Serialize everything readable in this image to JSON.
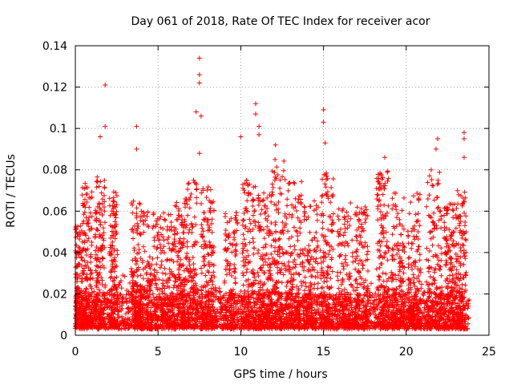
{
  "chart_data": {
    "type": "scatter",
    "title": "Day 061 of 2018, Rate Of TEC Index for receiver acor",
    "xlabel": "GPS time / hours",
    "ylabel": "ROTI / TECUs",
    "xlim": [
      0,
      25
    ],
    "ylim": [
      0,
      0.14
    ],
    "xticks": [
      0,
      5,
      10,
      15,
      20,
      25
    ],
    "xtick_labels": [
      "0",
      "5",
      "10",
      "15",
      "20",
      "25"
    ],
    "yticks": [
      0,
      0.02,
      0.04,
      0.06,
      0.08,
      0.1,
      0.12,
      0.14
    ],
    "ytick_labels": [
      "0",
      "0.02",
      "0.04",
      "0.06",
      "0.08",
      "0.1",
      "0.12",
      "0.14"
    ],
    "grid": true,
    "marker": "+",
    "color": "#ff0000",
    "series": [
      {
        "name": "ROTI",
        "x_range": [
          0.0,
          23.8
        ],
        "baseline_range": [
          0.003,
          0.02
        ],
        "notable_points": [
          {
            "x": 1.8,
            "y": 0.121
          },
          {
            "x": 1.8,
            "y": 0.101
          },
          {
            "x": 1.5,
            "y": 0.096
          },
          {
            "x": 3.7,
            "y": 0.101
          },
          {
            "x": 3.7,
            "y": 0.09
          },
          {
            "x": 7.5,
            "y": 0.134
          },
          {
            "x": 7.5,
            "y": 0.126
          },
          {
            "x": 7.5,
            "y": 0.122
          },
          {
            "x": 7.3,
            "y": 0.108
          },
          {
            "x": 7.6,
            "y": 0.106
          },
          {
            "x": 7.5,
            "y": 0.088
          },
          {
            "x": 10.0,
            "y": 0.096
          },
          {
            "x": 10.9,
            "y": 0.112
          },
          {
            "x": 10.9,
            "y": 0.107
          },
          {
            "x": 11.1,
            "y": 0.101
          },
          {
            "x": 11.1,
            "y": 0.097
          },
          {
            "x": 12.1,
            "y": 0.092
          },
          {
            "x": 15.0,
            "y": 0.109
          },
          {
            "x": 15.0,
            "y": 0.103
          },
          {
            "x": 15.1,
            "y": 0.093
          },
          {
            "x": 18.7,
            "y": 0.086
          },
          {
            "x": 21.9,
            "y": 0.095
          },
          {
            "x": 21.8,
            "y": 0.09
          },
          {
            "x": 23.5,
            "y": 0.098
          },
          {
            "x": 23.5,
            "y": 0.095
          },
          {
            "x": 23.5,
            "y": 0.086
          }
        ],
        "activity_bursts": [
          {
            "x_center": 0.2,
            "width": 0.3,
            "peak": 0.055
          },
          {
            "x_center": 0.7,
            "width": 0.4,
            "peak": 0.075
          },
          {
            "x_center": 1.5,
            "width": 0.4,
            "peak": 0.08
          },
          {
            "x_center": 2.3,
            "width": 0.3,
            "peak": 0.07
          },
          {
            "x_center": 3.7,
            "width": 0.4,
            "peak": 0.065
          },
          {
            "x_center": 4.5,
            "width": 0.6,
            "peak": 0.06
          },
          {
            "x_center": 5.5,
            "width": 0.6,
            "peak": 0.06
          },
          {
            "x_center": 6.3,
            "width": 0.4,
            "peak": 0.065
          },
          {
            "x_center": 7.0,
            "width": 0.5,
            "peak": 0.075
          },
          {
            "x_center": 8.0,
            "width": 0.5,
            "peak": 0.072
          },
          {
            "x_center": 9.4,
            "width": 0.5,
            "peak": 0.06
          },
          {
            "x_center": 10.5,
            "width": 0.5,
            "peak": 0.075
          },
          {
            "x_center": 11.4,
            "width": 0.5,
            "peak": 0.07
          },
          {
            "x_center": 12.2,
            "width": 0.6,
            "peak": 0.085
          },
          {
            "x_center": 13.2,
            "width": 0.6,
            "peak": 0.075
          },
          {
            "x_center": 14.2,
            "width": 0.6,
            "peak": 0.065
          },
          {
            "x_center": 15.2,
            "width": 0.5,
            "peak": 0.08
          },
          {
            "x_center": 16.3,
            "width": 0.6,
            "peak": 0.065
          },
          {
            "x_center": 17.3,
            "width": 0.5,
            "peak": 0.065
          },
          {
            "x_center": 18.6,
            "width": 0.5,
            "peak": 0.08
          },
          {
            "x_center": 19.5,
            "width": 0.5,
            "peak": 0.07
          },
          {
            "x_center": 20.5,
            "width": 0.5,
            "peak": 0.07
          },
          {
            "x_center": 21.7,
            "width": 0.6,
            "peak": 0.08
          },
          {
            "x_center": 22.6,
            "width": 0.4,
            "peak": 0.065
          },
          {
            "x_center": 23.3,
            "width": 0.4,
            "peak": 0.07
          }
        ]
      }
    ]
  }
}
